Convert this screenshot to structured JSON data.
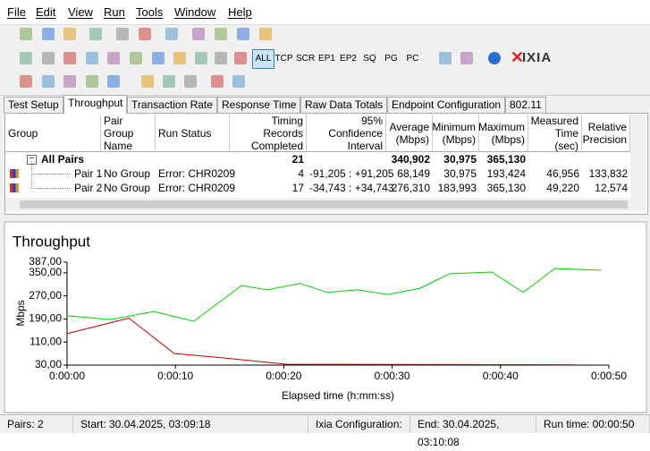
{
  "menu": [
    "File",
    "Edit",
    "View",
    "Run",
    "Tools",
    "Window",
    "Help"
  ],
  "toolbar_buttons": [
    "ALL",
    "TCP",
    "SCR",
    "EP1",
    "EP2",
    "SQ",
    "PG",
    "PC"
  ],
  "active_button": 0,
  "logo": "IXIA",
  "tabs": [
    "Test Setup",
    "Throughput",
    "Transaction Rate",
    "Response Time",
    "Raw Data Totals",
    "Endpoint Configuration",
    "802.11"
  ],
  "active_tab": 1,
  "table": {
    "columns": [
      "Group",
      "Pair Group\nName",
      "Run Status",
      "Timing Records\nCompleted",
      "95% Confidence\nInterval",
      "Average\n(Mbps)",
      "Minimum\n(Mbps)",
      "Maximum\n(Mbps)",
      "Measured\nTime (sec)",
      "Relative\nPrecision"
    ],
    "rows": [
      [
        "All Pairs",
        null,
        null,
        "21",
        null,
        "340,902",
        "30,975",
        "365,130",
        null,
        null
      ],
      [
        "Pair 1",
        "No Group",
        "Error:  CHR0209",
        "4",
        "-91,205 : +91,205",
        "68,149",
        "30,975",
        "193,424",
        "46,956",
        "133,832"
      ],
      [
        "Pair 2",
        "No Group",
        "Error:  CHR0209",
        "17",
        "-34,743 : +34,743",
        "276,310",
        "183,993",
        "365,130",
        "49,220",
        "12,574"
      ]
    ]
  },
  "chart_data": {
    "type": "line",
    "title": "Throughput",
    "x_label": "Elapsed time (h:mm:ss)",
    "y_label": "Mbps",
    "xlim": [
      0,
      50
    ],
    "xticks": [
      {
        "value": 0,
        "label": "0:00:00"
      },
      {
        "value": 10,
        "label": "0:00:10"
      },
      {
        "value": 20,
        "label": "0:00:20"
      },
      {
        "value": 30,
        "label": "0:00:30"
      },
      {
        "value": 40,
        "label": "0:00:40"
      },
      {
        "value": 50,
        "label": "0:00:50"
      }
    ],
    "ylim": [
      30,
      387
    ],
    "yticks": [
      {
        "value": 30,
        "label": "30,00"
      },
      {
        "value": 110,
        "label": "110,00"
      },
      {
        "value": 190,
        "label": "190,00"
      },
      {
        "value": 270,
        "label": "270,00"
      },
      {
        "value": 350,
        "label": "350,00"
      },
      {
        "value": 387,
        "label": "387,00"
      }
    ],
    "grid": false,
    "series": [
      {
        "color": "#c00000",
        "x": [
          0,
          5.7,
          9.9,
          14.4,
          20.2,
          47.0
        ],
        "values": [
          139,
          193,
          70,
          55,
          33,
          31
        ]
      },
      {
        "color": "#00d000",
        "x": [
          0,
          4.0,
          8.0,
          11.7,
          16.1,
          18.5,
          21.5,
          24.0,
          26.8,
          29.6,
          32.6,
          35.3,
          39.2,
          42.1,
          45.0,
          49.3
        ],
        "values": [
          201,
          188,
          216,
          182,
          306,
          291,
          313,
          282,
          291,
          275,
          297,
          347,
          353,
          282,
          365,
          359
        ]
      }
    ]
  },
  "status": [
    "Pairs: 2",
    "Start: 30.04.2025, 03:09:18",
    "Ixia Configuration:",
    "End: 30.04.2025, 03:10:08",
    "Run time: 00:00:50"
  ]
}
